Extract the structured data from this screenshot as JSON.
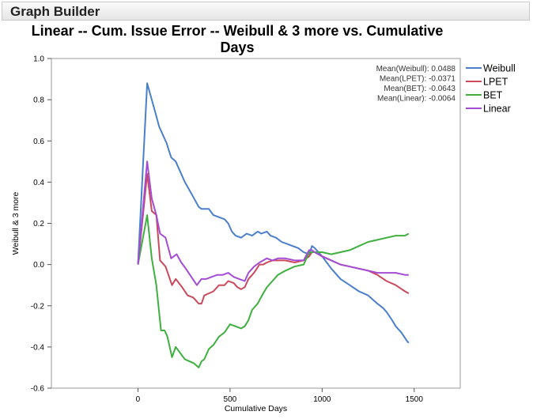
{
  "app": {
    "header_title": "Graph Builder"
  },
  "chart_data": {
    "type": "line",
    "title": "Linear -- Cum. Issue Error --  Weibull & 3 more vs. Cumulative Days",
    "xlabel": "Cumulative Days",
    "ylabel": "Weibull & 3 more",
    "xlim": [
      -470,
      1750
    ],
    "ylim": [
      -0.6,
      1.0
    ],
    "xticks": [
      0,
      500,
      1000,
      1500
    ],
    "xtick_labels": [
      "0",
      "500",
      "1000",
      "1500"
    ],
    "yticks": [
      -0.6,
      -0.4,
      -0.2,
      0.0,
      0.2,
      0.4,
      0.6,
      0.8,
      1.0
    ],
    "ytick_labels": [
      "-0.6",
      "-0.4",
      "-0.2",
      "0.0",
      "0.2",
      "0.4",
      "0.6",
      "0.8",
      "1.0"
    ],
    "legend_position": "right",
    "mean_annotations": [
      "Mean(Weibull): 0.0488",
      "Mean(LPET): -0.0371",
      "Mean(BET): -0.0643",
      "Mean(Linear): -0.0064"
    ],
    "series": [
      {
        "name": "Weibull",
        "color": "#4a7fcc",
        "x": [
          0,
          50,
          75,
          100,
          115,
          130,
          155,
          180,
          205,
          230,
          255,
          280,
          305,
          330,
          345,
          360,
          385,
          410,
          440,
          470,
          490,
          510,
          530,
          560,
          590,
          620,
          650,
          670,
          700,
          720,
          750,
          780,
          810,
          840,
          870,
          900,
          930,
          945,
          960,
          1000,
          1050,
          1100,
          1150,
          1200,
          1250,
          1300,
          1330,
          1350,
          1380,
          1400,
          1430,
          1460,
          1470
        ],
        "y": [
          0.0,
          0.88,
          0.8,
          0.72,
          0.67,
          0.64,
          0.59,
          0.52,
          0.5,
          0.45,
          0.4,
          0.36,
          0.32,
          0.28,
          0.27,
          0.27,
          0.27,
          0.24,
          0.23,
          0.22,
          0.2,
          0.16,
          0.14,
          0.13,
          0.15,
          0.14,
          0.16,
          0.15,
          0.16,
          0.14,
          0.13,
          0.11,
          0.1,
          0.09,
          0.08,
          0.06,
          0.05,
          0.09,
          0.08,
          0.04,
          -0.02,
          -0.07,
          -0.1,
          -0.13,
          -0.15,
          -0.19,
          -0.21,
          -0.23,
          -0.27,
          -0.3,
          -0.33,
          -0.37,
          -0.38
        ]
      },
      {
        "name": "LPET",
        "color": "#cc4a5c",
        "x": [
          0,
          50,
          75,
          100,
          120,
          150,
          185,
          205,
          240,
          270,
          300,
          330,
          345,
          360,
          385,
          410,
          440,
          470,
          490,
          520,
          540,
          560,
          580,
          600,
          630,
          660,
          680,
          700,
          730,
          760,
          800,
          850,
          900,
          930,
          945,
          960,
          1000,
          1050,
          1100,
          1150,
          1200,
          1250,
          1300,
          1350,
          1400,
          1450,
          1470
        ],
        "y": [
          0.0,
          0.44,
          0.26,
          0.24,
          0.02,
          -0.01,
          -0.1,
          -0.07,
          -0.11,
          -0.15,
          -0.16,
          -0.19,
          -0.19,
          -0.15,
          -0.14,
          -0.13,
          -0.1,
          -0.1,
          -0.08,
          -0.09,
          -0.11,
          -0.12,
          -0.11,
          -0.07,
          -0.04,
          0.0,
          0.0,
          0.01,
          0.02,
          0.02,
          0.02,
          0.01,
          0.02,
          0.04,
          0.06,
          0.06,
          0.04,
          0.02,
          0.0,
          -0.01,
          -0.02,
          -0.03,
          -0.05,
          -0.08,
          -0.1,
          -0.13,
          -0.14
        ]
      },
      {
        "name": "BET",
        "color": "#3fb03f",
        "x": [
          0,
          50,
          75,
          100,
          125,
          145,
          160,
          185,
          205,
          230,
          255,
          280,
          305,
          330,
          345,
          360,
          385,
          410,
          440,
          470,
          500,
          530,
          560,
          580,
          600,
          620,
          650,
          680,
          700,
          730,
          760,
          800,
          850,
          900,
          930,
          950,
          1000,
          1050,
          1100,
          1150,
          1200,
          1250,
          1300,
          1350,
          1400,
          1450,
          1470
        ],
        "y": [
          0.0,
          0.24,
          0.03,
          -0.1,
          -0.32,
          -0.32,
          -0.35,
          -0.45,
          -0.4,
          -0.43,
          -0.46,
          -0.47,
          -0.48,
          -0.5,
          -0.47,
          -0.46,
          -0.41,
          -0.39,
          -0.35,
          -0.33,
          -0.29,
          -0.3,
          -0.31,
          -0.3,
          -0.27,
          -0.22,
          -0.19,
          -0.14,
          -0.11,
          -0.08,
          -0.05,
          -0.03,
          -0.01,
          0.0,
          0.06,
          0.06,
          0.06,
          0.05,
          0.06,
          0.07,
          0.09,
          0.11,
          0.12,
          0.13,
          0.14,
          0.14,
          0.15
        ]
      },
      {
        "name": "Linear",
        "color": "#a44cd4",
        "x": [
          0,
          50,
          75,
          100,
          120,
          150,
          180,
          210,
          235,
          260,
          290,
          320,
          345,
          370,
          400,
          430,
          460,
          490,
          520,
          550,
          580,
          600,
          630,
          660,
          700,
          730,
          760,
          800,
          850,
          900,
          930,
          945,
          960,
          1000,
          1050,
          1100,
          1150,
          1200,
          1250,
          1300,
          1350,
          1400,
          1450,
          1470
        ],
        "y": [
          0.0,
          0.5,
          0.32,
          0.24,
          0.15,
          0.13,
          0.03,
          0.05,
          0.01,
          -0.02,
          -0.06,
          -0.1,
          -0.07,
          -0.07,
          -0.06,
          -0.05,
          -0.05,
          -0.04,
          -0.06,
          -0.07,
          -0.08,
          -0.04,
          -0.01,
          0.01,
          0.03,
          0.02,
          0.03,
          0.03,
          0.02,
          0.02,
          0.07,
          0.07,
          0.06,
          0.04,
          0.02,
          0.0,
          -0.01,
          -0.02,
          -0.03,
          -0.04,
          -0.04,
          -0.04,
          -0.05,
          -0.05
        ]
      }
    ]
  }
}
